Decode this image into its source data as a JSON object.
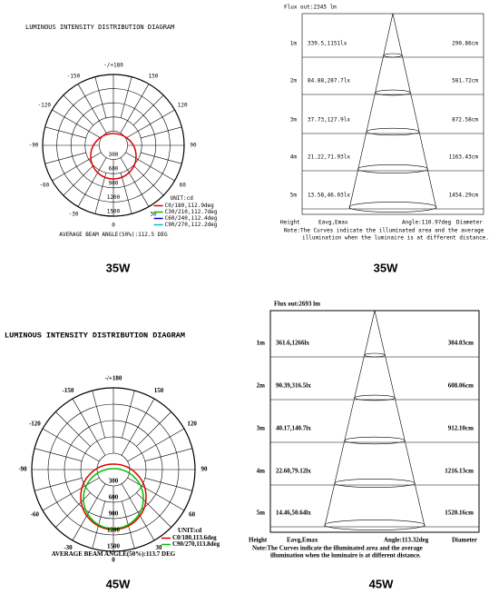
{
  "panels": [
    {
      "type": "polar",
      "title": "LUMINOUS INTENSITY DISTRIBUTION DIAGRAM",
      "angle_labels": [
        "-/+180",
        "150",
        "120",
        "90",
        "60",
        "30",
        "0",
        "-30",
        "-60",
        "-90",
        "-120",
        "-150"
      ],
      "radial_labels": [
        "300",
        "600",
        "900",
        "1200",
        "1500"
      ],
      "unit": "UNIT:cd",
      "legend": [
        {
          "label": "C0/180,112.9deg",
          "color": "#e00000"
        },
        {
          "label": "C30/210,112.7deg",
          "color": "#00c000"
        },
        {
          "label": "C60/240,112.4deg",
          "color": "#0000e0"
        },
        {
          "label": "C90/270,112.2deg",
          "color": "#00c0c0"
        }
      ],
      "beam_angle": "AVERAGE BEAM ANGLE(50%):112.5 DEG",
      "caption": "35W"
    },
    {
      "type": "cone",
      "flux": "Flux out:2345 lm",
      "rows": [
        {
          "height": "1m",
          "illum": "339.5,1151lx",
          "diameter": "290.86cm"
        },
        {
          "height": "2m",
          "illum": "84.88,287.7lx",
          "diameter": "581.72cm"
        },
        {
          "height": "3m",
          "illum": "37.73,127.9lx",
          "diameter": "872.58cm"
        },
        {
          "height": "4m",
          "illum": "21.22,71.93lx",
          "diameter": "1163.43cm"
        },
        {
          "height": "5m",
          "illum": "13.58,46.03lx",
          "diameter": "1454.29cm"
        }
      ],
      "footer": [
        "Height",
        "Eavg,Emax",
        "Angle:110.97deg",
        "Diameter"
      ],
      "note": [
        "Note:The Curves indicate the illuminated area and the average",
        "illumination when the luminaire is at different distance."
      ],
      "caption": "35W"
    },
    {
      "type": "polar",
      "title": "LUMINOUS INTENSITY DISTRIBUTION DIAGRAM",
      "angle_labels": [
        "-/+180",
        "150",
        "120",
        "90",
        "60",
        "30",
        "0",
        "-30",
        "-60",
        "-90",
        "-120",
        "-150"
      ],
      "radial_labels": [
        "300",
        "600",
        "900",
        "1200",
        "1500"
      ],
      "unit": "UNIT:cd",
      "legend": [
        {
          "label": "C0/180,113.6deg",
          "color": "#e00000"
        },
        {
          "label": "C90/270,113.8deg",
          "color": "#00c000"
        }
      ],
      "beam_angle": "AVERAGE BEAM ANGLE(50%):113.7 DEG",
      "caption": "45W"
    },
    {
      "type": "cone",
      "flux": "Flux out:2693 lm",
      "rows": [
        {
          "height": "1m",
          "illum": "361.6,1266lx",
          "diameter": "304.03cm"
        },
        {
          "height": "2m",
          "illum": "90.39,316.5lx",
          "diameter": "608.06cm"
        },
        {
          "height": "3m",
          "illum": "40.17,140.7lx",
          "diameter": "912.10cm"
        },
        {
          "height": "4m",
          "illum": "22.60,79.12lx",
          "diameter": "1216.13cm"
        },
        {
          "height": "5m",
          "illum": "14.46,50.64lx",
          "diameter": "1520.16cm"
        }
      ],
      "footer": [
        "Height",
        "Eavg,Emax",
        "Angle:113.32deg",
        "Diameter"
      ],
      "note": [
        "Note:The Curves indicate the illuminated area and the average",
        "illumination when the luminaire is at different distance."
      ],
      "caption": "45W"
    }
  ]
}
